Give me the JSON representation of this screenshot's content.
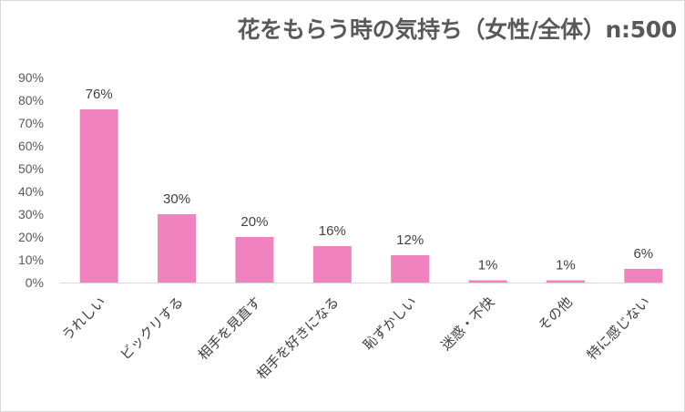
{
  "chart_data": {
    "type": "bar",
    "title": "花をもらう時の気持ち（女性/全体）n:500",
    "categories": [
      "うれしい",
      "ビックリする",
      "相手を見直す",
      "相手を好きになる",
      "恥ずかしい",
      "迷惑・不快",
      "その他",
      "特に感じない"
    ],
    "values": [
      76,
      30,
      20,
      16,
      12,
      1,
      1,
      6
    ],
    "data_labels": [
      "76%",
      "30%",
      "20%",
      "16%",
      "12%",
      "1%",
      "1%",
      "6%"
    ],
    "yticks": [
      "0%",
      "10%",
      "20%",
      "30%",
      "40%",
      "50%",
      "60%",
      "70%",
      "80%",
      "90%"
    ],
    "ylim": [
      0,
      90
    ],
    "bar_color": "#f082c0",
    "grid": false,
    "legend": "none"
  }
}
